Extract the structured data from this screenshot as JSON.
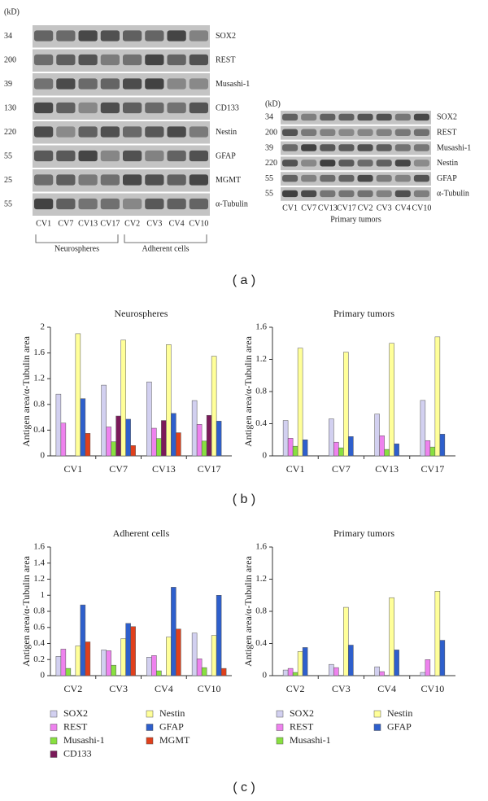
{
  "panels": [
    "( a )",
    "( b )",
    "( c )"
  ],
  "blots": [
    {
      "unit": "(kD)",
      "rows": [
        {
          "kd": "34",
          "protein": "SOX2"
        },
        {
          "kd": "200",
          "protein": "REST"
        },
        {
          "kd": "39",
          "protein": "Musashi-1"
        },
        {
          "kd": "130",
          "protein": "CD133"
        },
        {
          "kd": "220",
          "protein": "Nestin"
        },
        {
          "kd": "55",
          "protein": "GFAP"
        },
        {
          "kd": "25",
          "protein": "MGMT"
        },
        {
          "kd": "55",
          "protein": "α-Tubulin"
        }
      ],
      "lanes": [
        "CV1",
        "CV7",
        "CV13",
        "CV17",
        "CV2",
        "CV3",
        "CV4",
        "CV10"
      ],
      "groups": [
        "Neurospheres",
        "Adherent cells"
      ]
    },
    {
      "unit": "(kD)",
      "rows": [
        {
          "kd": "34",
          "protein": "SOX2"
        },
        {
          "kd": "200",
          "protein": "REST"
        },
        {
          "kd": "39",
          "protein": "Musashi-1"
        },
        {
          "kd": "220",
          "protein": "Nestin"
        },
        {
          "kd": "55",
          "protein": "GFAP"
        },
        {
          "kd": "55",
          "protein": "α-Tubulin"
        }
      ],
      "lanes": [
        "CV1",
        "CV7",
        "CV13",
        "CV17",
        "CV2",
        "CV3",
        "CV4",
        "CV10"
      ],
      "caption": "Primary tumors"
    }
  ],
  "chart_data": [
    {
      "type": "bar",
      "title": "Neurospheres",
      "y_label": "Antigen area/α-Tubulin area",
      "categories": [
        "CV1",
        "CV7",
        "CV13",
        "CV17"
      ],
      "ylim": [
        0,
        2
      ],
      "yticks": [
        0,
        0.4,
        0.8,
        1.2,
        1.6,
        2
      ],
      "series": [
        {
          "name": "SOX2",
          "color": "#d2d0f0",
          "values": [
            0.96,
            1.1,
            1.15,
            0.86
          ]
        },
        {
          "name": "REST",
          "color": "#ee82ee",
          "values": [
            0.51,
            0.45,
            0.43,
            0.49
          ]
        },
        {
          "name": "Musashi-1",
          "color": "#88e040",
          "values": [
            0,
            0.22,
            0.27,
            0.23
          ]
        },
        {
          "name": "CD133",
          "color": "#7b1a5a",
          "values": [
            0,
            0.62,
            0.55,
            0.63
          ]
        },
        {
          "name": "Nestin",
          "color": "#ffff99",
          "values": [
            1.9,
            1.8,
            1.73,
            1.55
          ]
        },
        {
          "name": "GFAP",
          "color": "#2e5fcc",
          "values": [
            0.89,
            0.57,
            0.66,
            0.54
          ]
        },
        {
          "name": "MGMT",
          "color": "#e0401c",
          "values": [
            0.35,
            0.16,
            0.36,
            0
          ]
        }
      ]
    },
    {
      "type": "bar",
      "title": "Primary tumors",
      "y_label": "Antigen area/α-Tubulin area",
      "categories": [
        "CV1",
        "CV7",
        "CV13",
        "CV17"
      ],
      "ylim": [
        0,
        1.6
      ],
      "yticks": [
        0,
        0.4,
        0.8,
        1.2,
        1.6
      ],
      "series": [
        {
          "name": "SOX2",
          "color": "#d2d0f0",
          "values": [
            0.44,
            0.46,
            0.52,
            0.69
          ]
        },
        {
          "name": "REST",
          "color": "#ee82ee",
          "values": [
            0.22,
            0.17,
            0.25,
            0.19
          ]
        },
        {
          "name": "Musashi-1",
          "color": "#88e040",
          "values": [
            0.12,
            0.1,
            0.08,
            0.11
          ]
        },
        {
          "name": "Nestin",
          "color": "#ffff99",
          "values": [
            1.34,
            1.29,
            1.4,
            1.48
          ]
        },
        {
          "name": "GFAP",
          "color": "#2e5fcc",
          "values": [
            0.2,
            0.24,
            0.15,
            0.27
          ]
        }
      ]
    },
    {
      "type": "bar",
      "title": "Adherent cells",
      "y_label": "Antigen area/α-Tubulin area",
      "categories": [
        "CV2",
        "CV3",
        "CV4",
        "CV10"
      ],
      "ylim": [
        0,
        1.6
      ],
      "yticks": [
        0,
        0.2,
        0.4,
        0.6,
        0.8,
        1,
        1.2,
        1.4,
        1.6
      ],
      "series": [
        {
          "name": "SOX2",
          "color": "#d2d0f0",
          "values": [
            0.24,
            0.32,
            0.23,
            0.53
          ]
        },
        {
          "name": "REST",
          "color": "#ee82ee",
          "values": [
            0.33,
            0.31,
            0.25,
            0.21
          ]
        },
        {
          "name": "Musashi-1",
          "color": "#88e040",
          "values": [
            0.09,
            0.13,
            0.06,
            0.1
          ]
        },
        {
          "name": "CD133",
          "color": "#7b1a5a",
          "values": [
            null,
            null,
            null,
            null
          ]
        },
        {
          "name": "Nestin",
          "color": "#ffff99",
          "values": [
            0.37,
            0.46,
            0.48,
            0.5
          ]
        },
        {
          "name": "GFAP",
          "color": "#2e5fcc",
          "values": [
            0.88,
            0.65,
            1.1,
            1.0
          ]
        },
        {
          "name": "MGMT",
          "color": "#e0401c",
          "values": [
            0.42,
            0.61,
            0.58,
            0.09
          ]
        }
      ]
    },
    {
      "type": "bar",
      "title": "Primary tumors",
      "y_label": "Antigen area/α-Tubulin area",
      "categories": [
        "CV2",
        "CV3",
        "CV4",
        "CV10"
      ],
      "ylim": [
        0,
        1.6
      ],
      "yticks": [
        0,
        0.4,
        0.8,
        1.2,
        1.6
      ],
      "series": [
        {
          "name": "SOX2",
          "color": "#d2d0f0",
          "values": [
            0.07,
            0.14,
            0.11,
            0.04
          ]
        },
        {
          "name": "REST",
          "color": "#ee82ee",
          "values": [
            0.09,
            0.1,
            0.05,
            0.2
          ]
        },
        {
          "name": "Musashi-1",
          "color": "#88e040",
          "values": [
            0.04,
            0,
            0,
            0
          ]
        },
        {
          "name": "Nestin",
          "color": "#ffff99",
          "values": [
            0.3,
            0.85,
            0.97,
            1.05
          ]
        },
        {
          "name": "GFAP",
          "color": "#2e5fcc",
          "values": [
            0.35,
            0.38,
            0.32,
            0.44
          ]
        }
      ]
    }
  ]
}
